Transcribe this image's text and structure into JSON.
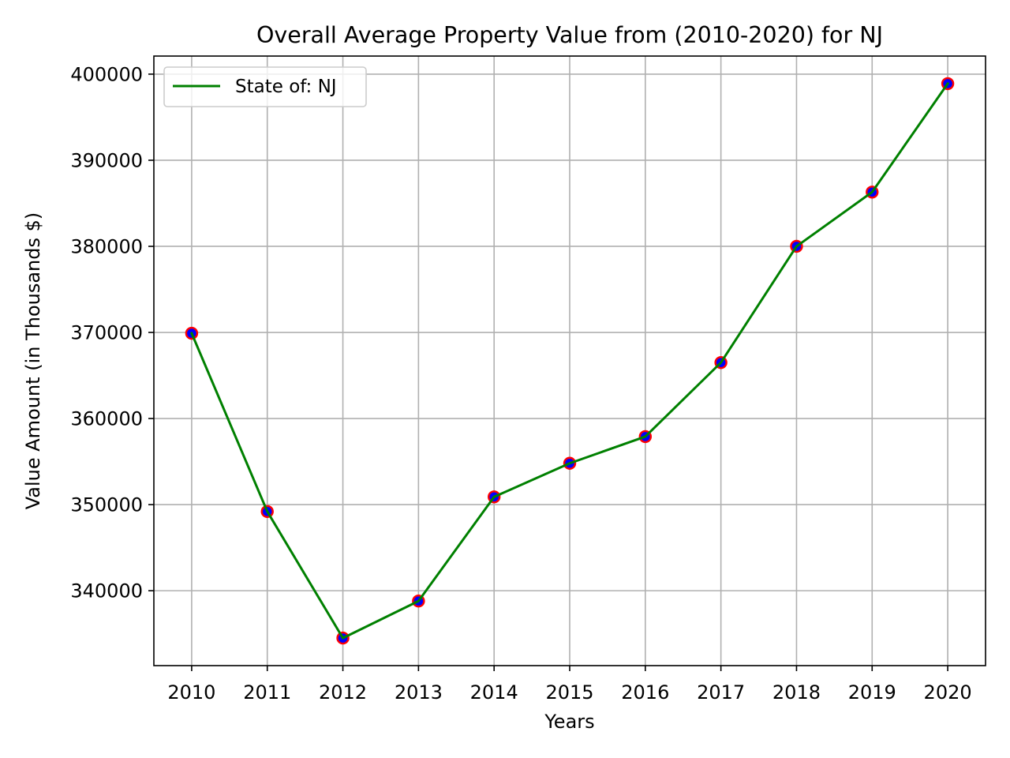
{
  "chart_data": {
    "type": "line",
    "title": "Overall Average Property Value from (2010-2020) for NJ",
    "xlabel": "Years",
    "ylabel": "Value Amount (in Thousands $)",
    "x": [
      2010,
      2011,
      2012,
      2013,
      2014,
      2015,
      2016,
      2017,
      2018,
      2019,
      2020
    ],
    "x_tick_labels": [
      "2010",
      "2011",
      "2012",
      "2013",
      "2014",
      "2015",
      "2016",
      "2017",
      "2018",
      "2019",
      "2020"
    ],
    "y_ticks": [
      340000,
      350000,
      360000,
      370000,
      380000,
      390000,
      400000
    ],
    "y_tick_labels": [
      "340000",
      "350000",
      "360000",
      "370000",
      "380000",
      "390000",
      "400000"
    ],
    "xlim": [
      2009.5,
      2020.5
    ],
    "ylim": [
      331300,
      402100
    ],
    "grid": true,
    "legend_position": "top-left",
    "series": [
      {
        "name": "State of: NJ",
        "values": [
          369900,
          349200,
          334500,
          338800,
          350900,
          354800,
          357900,
          366500,
          380000,
          386300,
          398900
        ],
        "line_color": "#008000",
        "marker_face_color": "#0000ff",
        "marker_edge_color": "#ff0000"
      }
    ]
  }
}
